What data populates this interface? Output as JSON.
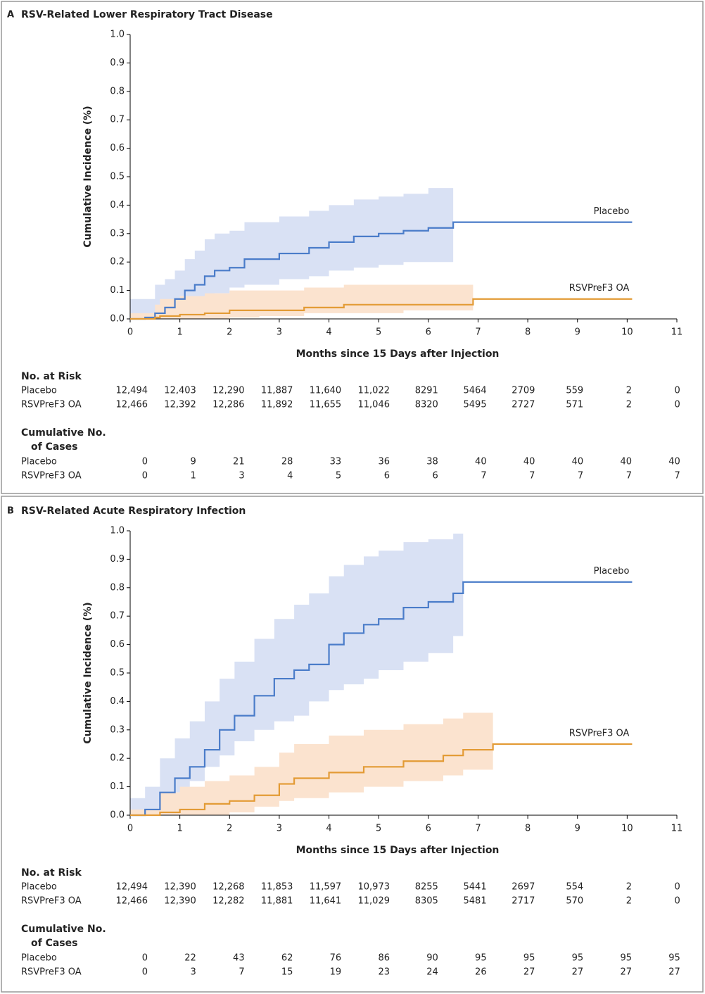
{
  "chart_data": [
    {
      "type": "step",
      "panel": "A",
      "title": "RSV-Related Lower Respiratory Tract Disease",
      "x_label": "Months since 15 Days after Injection",
      "y_label": "Cumulative Incidence (%)",
      "xlim": [
        0,
        11
      ],
      "xticks": [
        0,
        1,
        2,
        3,
        4,
        5,
        6,
        7,
        8,
        9,
        10,
        11
      ],
      "ylim": [
        0,
        1
      ],
      "yticks": [
        {
          "value": 0,
          "label": "0.0"
        },
        {
          "value": 0.1,
          "label": "0.1"
        },
        {
          "value": 0.2,
          "label": "0.2"
        },
        {
          "value": 0.3,
          "label": "0.3"
        },
        {
          "value": 0.4,
          "label": "0.4"
        },
        {
          "value": 0.5,
          "label": "0.5"
        },
        {
          "value": 0.6,
          "label": "0.6"
        },
        {
          "value": 0.7,
          "label": "0.7"
        },
        {
          "value": 0.8,
          "label": "0.8"
        },
        {
          "value": 0.9,
          "label": "0.9"
        },
        {
          "value": 1,
          "label": "1.0"
        }
      ],
      "series": [
        {
          "name": "Placebo",
          "color": "#4a7cc9",
          "band_color": "#d9e1f4",
          "x": [
            0,
            0.3,
            0.5,
            0.7,
            0.9,
            1.1,
            1.3,
            1.5,
            1.7,
            2.0,
            2.3,
            3.0,
            3.6,
            4.0,
            4.5,
            5.0,
            5.5,
            6.0,
            6.5,
            10.1
          ],
          "values": [
            0,
            0.005,
            0.02,
            0.04,
            0.07,
            0.1,
            0.12,
            0.15,
            0.17,
            0.18,
            0.21,
            0.23,
            0.25,
            0.27,
            0.29,
            0.3,
            0.31,
            0.32,
            0.34,
            0.34
          ],
          "ci_x": [
            0,
            0.3,
            0.5,
            0.7,
            0.9,
            1.1,
            1.3,
            1.5,
            1.7,
            2.0,
            2.3,
            3.0,
            3.6,
            4.0,
            4.5,
            5.0,
            5.5,
            6.0,
            6.5
          ],
          "ci_upper": [
            0.07,
            0.07,
            0.12,
            0.14,
            0.17,
            0.21,
            0.24,
            0.28,
            0.3,
            0.31,
            0.34,
            0.36,
            0.38,
            0.4,
            0.42,
            0.43,
            0.44,
            0.46,
            0.48
          ],
          "ci_lower": [
            0,
            0,
            0,
            0,
            0.01,
            0.03,
            0.04,
            0.06,
            0.08,
            0.09,
            0.11,
            0.12,
            0.14,
            0.15,
            0.17,
            0.18,
            0.19,
            0.2,
            0.2
          ]
        },
        {
          "name": "RSVPreF3 OA",
          "color": "#e39b35",
          "band_color": "#fbe3cf",
          "x": [
            0,
            0.5,
            0.6,
            1.0,
            1.5,
            2.0,
            2.6,
            3.5,
            4.3,
            5.5,
            6.9,
            10.1
          ],
          "values": [
            0,
            0.005,
            0.01,
            0.015,
            0.02,
            0.03,
            0.03,
            0.04,
            0.05,
            0.05,
            0.07,
            0.07
          ],
          "ci_x": [
            0,
            0.5,
            0.6,
            1.0,
            1.5,
            2.0,
            2.6,
            3.5,
            4.3,
            5.5,
            6.9
          ],
          "ci_upper": [
            0.02,
            0.05,
            0.07,
            0.08,
            0.09,
            0.1,
            0.1,
            0.11,
            0.12,
            0.12,
            0.16
          ],
          "ci_lower": [
            0,
            0,
            0,
            0,
            0,
            0,
            0.005,
            0.01,
            0.02,
            0.02,
            0.03
          ]
        }
      ],
      "risk_table": {
        "title": "No. at Risk",
        "rows": [
          {
            "label": "Placebo",
            "values": [
              "12,494",
              "12,403",
              "12,290",
              "11,887",
              "11,640",
              "11,022",
              "8291",
              "5464",
              "2709",
              "559",
              "2",
              "0"
            ]
          },
          {
            "label": "RSVPreF3 OA",
            "values": [
              "12,466",
              "12,392",
              "12,286",
              "11,892",
              "11,655",
              "11,046",
              "8320",
              "5495",
              "2727",
              "571",
              "2",
              "0"
            ]
          }
        ]
      },
      "cases_table": {
        "title": [
          "Cumulative No.",
          "of Cases"
        ],
        "rows": [
          {
            "label": "Placebo",
            "values": [
              "0",
              "9",
              "21",
              "28",
              "33",
              "36",
              "38",
              "40",
              "40",
              "40",
              "40",
              "40"
            ]
          },
          {
            "label": "RSVPreF3 OA",
            "values": [
              "0",
              "1",
              "3",
              "4",
              "5",
              "6",
              "6",
              "7",
              "7",
              "7",
              "7",
              "7"
            ]
          }
        ]
      }
    },
    {
      "type": "step",
      "panel": "B",
      "title": "RSV-Related Acute Respiratory Infection",
      "x_label": "Months since 15 Days after Injection",
      "y_label": "Cumulative Incidence (%)",
      "xlim": [
        0,
        11
      ],
      "xticks": [
        0,
        1,
        2,
        3,
        4,
        5,
        6,
        7,
        8,
        9,
        10,
        11
      ],
      "ylim": [
        0,
        1
      ],
      "yticks": [
        {
          "value": 0,
          "label": "0.0"
        },
        {
          "value": 0.1,
          "label": "0.1"
        },
        {
          "value": 0.2,
          "label": "0.2"
        },
        {
          "value": 0.3,
          "label": "0.3"
        },
        {
          "value": 0.4,
          "label": "0.4"
        },
        {
          "value": 0.5,
          "label": "0.5"
        },
        {
          "value": 0.6,
          "label": "0.6"
        },
        {
          "value": 0.7,
          "label": "0.7"
        },
        {
          "value": 0.8,
          "label": "0.8"
        },
        {
          "value": 0.9,
          "label": "0.9"
        },
        {
          "value": 1,
          "label": "1.0"
        }
      ],
      "series": [
        {
          "name": "Placebo",
          "color": "#4a7cc9",
          "band_color": "#d9e1f4",
          "x": [
            0,
            0.3,
            0.6,
            0.9,
            1.2,
            1.5,
            1.8,
            2.1,
            2.5,
            2.9,
            3.3,
            3.6,
            4.0,
            4.3,
            4.7,
            5.0,
            5.5,
            6.0,
            6.5,
            6.7,
            10.1
          ],
          "values": [
            0,
            0.02,
            0.08,
            0.13,
            0.17,
            0.23,
            0.3,
            0.35,
            0.42,
            0.48,
            0.51,
            0.53,
            0.6,
            0.64,
            0.67,
            0.69,
            0.73,
            0.75,
            0.78,
            0.82,
            0.82
          ],
          "ci_x": [
            0,
            0.3,
            0.6,
            0.9,
            1.2,
            1.5,
            1.8,
            2.1,
            2.5,
            2.9,
            3.3,
            3.6,
            4.0,
            4.3,
            4.7,
            5.0,
            5.5,
            6.0,
            6.5,
            6.7
          ],
          "ci_upper": [
            0.06,
            0.1,
            0.2,
            0.27,
            0.33,
            0.4,
            0.48,
            0.54,
            0.62,
            0.69,
            0.74,
            0.78,
            0.84,
            0.88,
            0.91,
            0.93,
            0.96,
            0.97,
            0.99,
            1.0
          ],
          "ci_lower": [
            0,
            0,
            0.02,
            0.05,
            0.08,
            0.12,
            0.17,
            0.21,
            0.26,
            0.3,
            0.33,
            0.35,
            0.4,
            0.44,
            0.46,
            0.48,
            0.51,
            0.54,
            0.57,
            0.63
          ]
        },
        {
          "name": "RSVPreF3 OA",
          "color": "#e39b35",
          "band_color": "#fbe3cf",
          "x": [
            0,
            0.6,
            1.0,
            1.5,
            2.0,
            2.5,
            3.0,
            3.3,
            4.0,
            4.7,
            5.5,
            6.3,
            6.7,
            7.3,
            10.1
          ],
          "values": [
            0,
            0.01,
            0.02,
            0.04,
            0.05,
            0.07,
            0.11,
            0.13,
            0.15,
            0.17,
            0.19,
            0.21,
            0.23,
            0.25,
            0.25
          ],
          "ci_x": [
            0,
            0.6,
            1.0,
            1.5,
            2.0,
            2.5,
            3.0,
            3.3,
            4.0,
            4.7,
            5.5,
            6.3,
            6.7,
            7.3
          ],
          "ci_upper": [
            0.02,
            0.08,
            0.1,
            0.12,
            0.14,
            0.17,
            0.22,
            0.25,
            0.28,
            0.3,
            0.32,
            0.34,
            0.36,
            0.38
          ],
          "ci_lower": [
            0,
            0,
            0,
            0,
            0,
            0.01,
            0.03,
            0.05,
            0.06,
            0.08,
            0.1,
            0.12,
            0.14,
            0.16
          ]
        }
      ],
      "risk_table": {
        "title": "No. at Risk",
        "rows": [
          {
            "label": "Placebo",
            "values": [
              "12,494",
              "12,390",
              "12,268",
              "11,853",
              "11,597",
              "10,973",
              "8255",
              "5441",
              "2697",
              "554",
              "2",
              "0"
            ]
          },
          {
            "label": "RSVPreF3 OA",
            "values": [
              "12,466",
              "12,390",
              "12,282",
              "11,881",
              "11,641",
              "11,029",
              "8305",
              "5481",
              "2717",
              "570",
              "2",
              "0"
            ]
          }
        ]
      },
      "cases_table": {
        "title": [
          "Cumulative No.",
          "of Cases"
        ],
        "rows": [
          {
            "label": "Placebo",
            "values": [
              "0",
              "22",
              "43",
              "62",
              "76",
              "86",
              "90",
              "95",
              "95",
              "95",
              "95",
              "95"
            ]
          },
          {
            "label": "RSVPreF3 OA",
            "values": [
              "0",
              "3",
              "7",
              "15",
              "19",
              "23",
              "24",
              "26",
              "27",
              "27",
              "27",
              "27"
            ]
          }
        ]
      }
    }
  ]
}
